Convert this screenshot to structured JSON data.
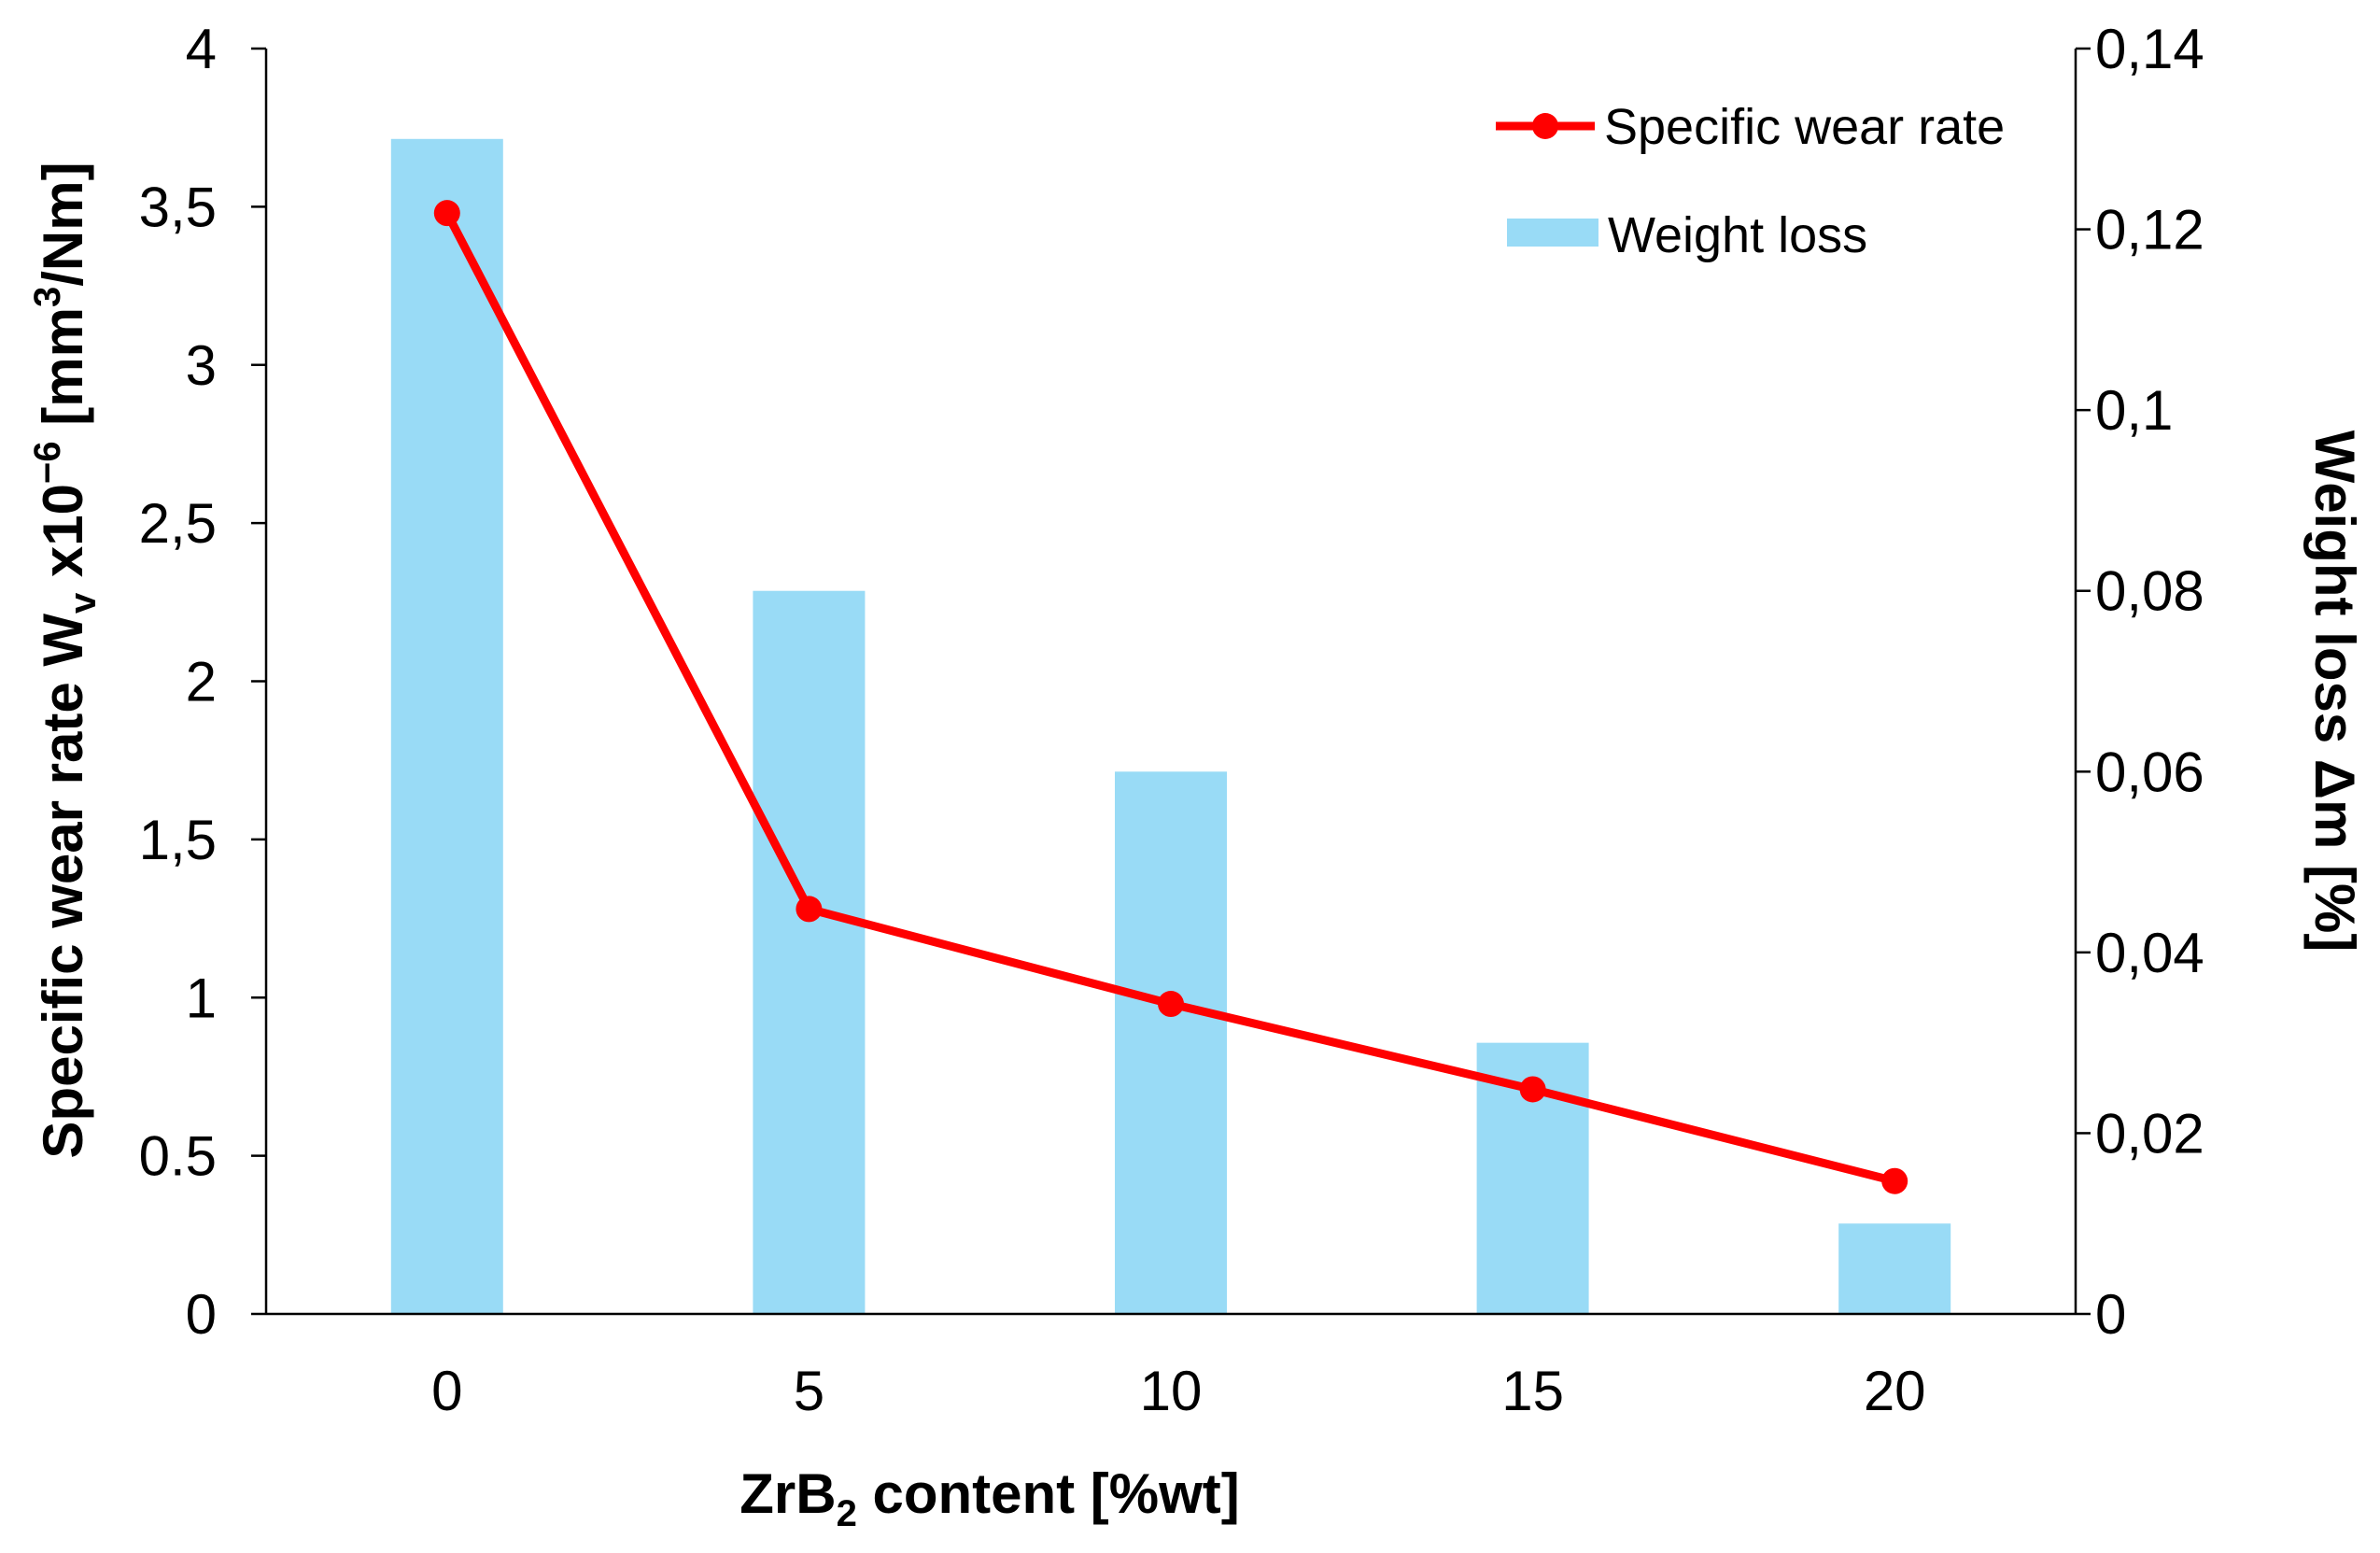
{
  "chart_data": {
    "type": "bar+line",
    "title": "",
    "categories": [
      "0",
      "5",
      "10",
      "15",
      "20"
    ],
    "xlabel": {
      "prefix": "ZrB",
      "subscript": "2",
      "suffix": " content [%wt]"
    },
    "ylabel_left": {
      "prefix": "Specific wear rate W",
      "subscript": "v",
      "middle": " x10",
      "superscript": "−6",
      "unit_prefix": "  [mm",
      "unit_superscript": "3",
      "unit_suffix": "/Nm]"
    },
    "ylabel_right": "Weight loss  Δm [%]",
    "ylim_left": [
      0,
      4
    ],
    "ylim_right": [
      0,
      0.14
    ],
    "left_ticks": [
      {
        "value": 0,
        "label": "0"
      },
      {
        "value": 0.5,
        "label": "0.5"
      },
      {
        "value": 1,
        "label": "1"
      },
      {
        "value": 1.5,
        "label": "1,5"
      },
      {
        "value": 2,
        "label": "2"
      },
      {
        "value": 2.5,
        "label": "2,5"
      },
      {
        "value": 3,
        "label": "3"
      },
      {
        "value": 3.5,
        "label": "3,5"
      },
      {
        "value": 4,
        "label": "4"
      }
    ],
    "right_ticks": [
      {
        "value": 0,
        "label": "0"
      },
      {
        "value": 0.02,
        "label": "0,02"
      },
      {
        "value": 0.04,
        "label": "0,04"
      },
      {
        "value": 0.06,
        "label": "0,06"
      },
      {
        "value": 0.08,
        "label": "0,08"
      },
      {
        "value": 0.1,
        "label": "0,1"
      },
      {
        "value": 0.12,
        "label": "0,12"
      },
      {
        "value": 0.14,
        "label": "0,14"
      }
    ],
    "series": [
      {
        "name": "Specific wear rate",
        "type": "line",
        "axis": "left",
        "color": "#ff0000",
        "values": [
          3.48,
          1.28,
          0.98,
          0.71,
          0.42
        ]
      },
      {
        "name": "Weight loss",
        "type": "bar",
        "axis": "right",
        "color": "#99dbf6",
        "values": [
          0.13,
          0.08,
          0.06,
          0.03,
          0.01
        ]
      }
    ],
    "legend_position": "top-right",
    "grid": false
  }
}
